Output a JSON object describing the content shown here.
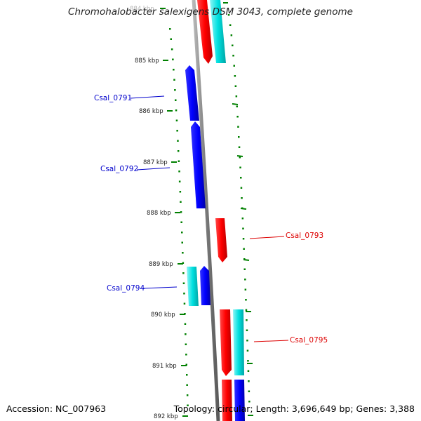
{
  "title": "Chromohalobacter salexigens DSM 3043, complete genome",
  "footer": {
    "accession": "Accession: NC_007963",
    "topology": "Topology: circular; Length: 3,696,649 bp; Genes: 3,388"
  },
  "colors": {
    "forward_cds": "#ff0000",
    "reverse_cds": "#0000ff",
    "forward_feature": "#00e0e0",
    "reverse_feature": "#00d8d8",
    "ticks": "#008000",
    "backbone": "#888888"
  },
  "ticks": {
    "labels": [
      "884 kbp",
      "885 kbp",
      "886 kbp",
      "887 kbp",
      "888 kbp",
      "889 kbp",
      "890 kbp",
      "891 kbp",
      "892 kbp"
    ]
  },
  "genes": [
    {
      "locus": "Csal_0791",
      "strand": "reverse",
      "color": "blue",
      "labeled": true
    },
    {
      "locus": "Csal_0792",
      "strand": "reverse",
      "color": "blue",
      "labeled": true
    },
    {
      "locus": "Csal_0793",
      "strand": "forward",
      "color": "red",
      "labeled": true
    },
    {
      "locus": "Csal_0794",
      "strand": "reverse",
      "color": "blue",
      "labeled": true
    },
    {
      "locus": "Csal_0795",
      "strand": "forward",
      "color": "red",
      "labeled": true
    }
  ]
}
